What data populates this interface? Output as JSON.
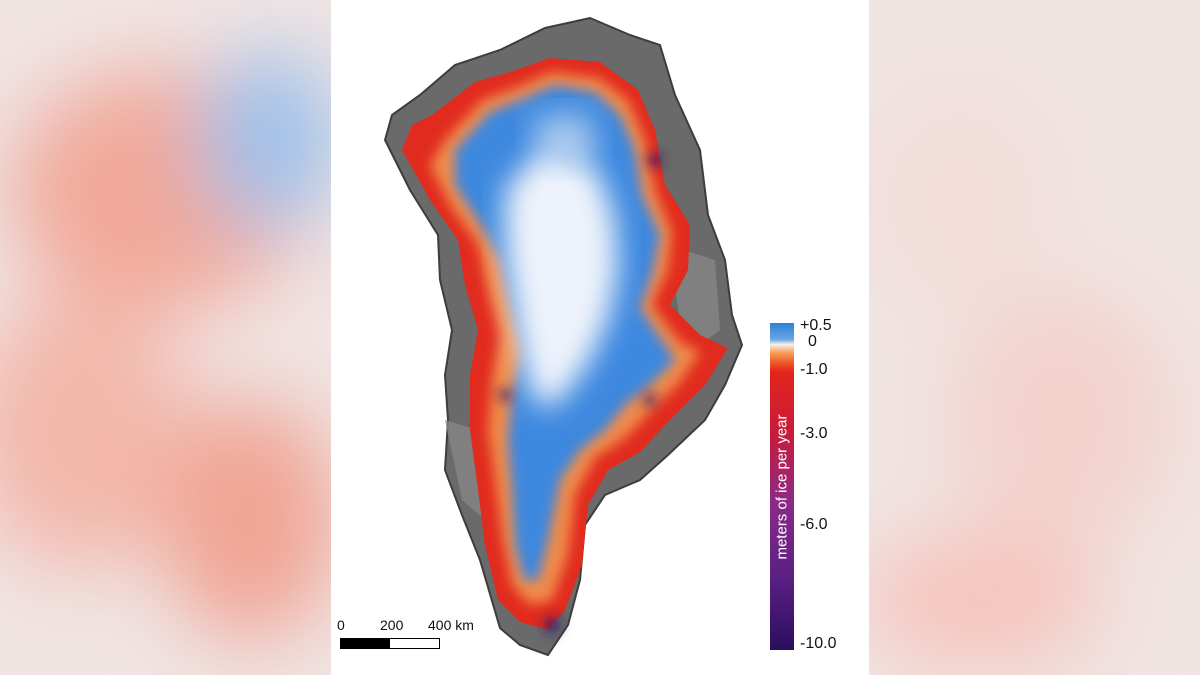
{
  "legend": {
    "title": "meters of ice per year",
    "ticks": [
      {
        "label": "+0.5",
        "value": 0.5
      },
      {
        "label": "0",
        "value": 0
      },
      {
        "label": "-1.0",
        "value": -1.0
      },
      {
        "label": "-3.0",
        "value": -3.0
      },
      {
        "label": "-6.0",
        "value": -6.0
      },
      {
        "label": "-10.0",
        "value": -10.0
      }
    ],
    "colors": {
      "gain": "#2f7ed8",
      "zero": "#f6f0ea",
      "loss_low": "#e2251c",
      "loss_high": "#2a0f5e"
    }
  },
  "scalebar": {
    "labels": [
      "0",
      "200",
      "400 km"
    ]
  },
  "colors": {
    "interior": "#3a86e0",
    "summit": "#eaf1fb",
    "edge_orange": "#f08a48",
    "edge_red": "#e22a1e",
    "land": "#6f6f6f"
  }
}
